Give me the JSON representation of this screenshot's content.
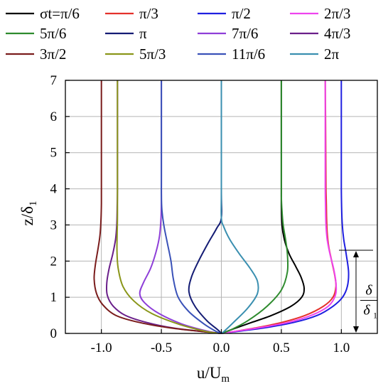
{
  "chart_data": {
    "type": "line",
    "title": "",
    "xlabel": {
      "main": "u/U",
      "sub": "m"
    },
    "ylabel": {
      "main": "z/δ",
      "sub": "1"
    },
    "xlim": [
      -1.3,
      1.3
    ],
    "ylim": [
      0,
      7
    ],
    "xticks": [
      -1.0,
      -0.5,
      0.0,
      0.5,
      1.0
    ],
    "xtick_labels": [
      "-1.0",
      "-0.5",
      "0.0",
      "0.5",
      "1.0"
    ],
    "yticks": [
      0,
      1,
      2,
      3,
      4,
      5,
      6,
      7
    ],
    "ytick_labels": [
      "0",
      "1",
      "2",
      "3",
      "4",
      "5",
      "6",
      "7"
    ],
    "grid": true,
    "legend_position": "top (above plot), 4 columns",
    "annotation": {
      "numerator": "δ",
      "denominator": "δ",
      "denominator_sub": "1",
      "height_y": 2.3
    },
    "series": [
      {
        "name": "σt=π/6",
        "color": "#000000",
        "x": [
          0.0,
          0.04,
          0.12,
          0.25,
          0.42,
          0.58,
          0.67,
          0.69,
          0.665,
          0.62,
          0.565,
          0.525,
          0.505,
          0.5,
          0.5,
          0.5,
          0.5,
          0.5,
          0.5
        ],
        "y": [
          0.0,
          0.05,
          0.15,
          0.3,
          0.5,
          0.75,
          1.0,
          1.25,
          1.55,
          1.85,
          2.2,
          2.6,
          3.0,
          3.5,
          4.0,
          5.0,
          5.5,
          6.0,
          7.0
        ]
      },
      {
        "name": "π/3",
        "color": "#e4312b",
        "x": [
          0.0,
          0.1,
          0.28,
          0.5,
          0.7,
          0.85,
          0.93,
          0.955,
          0.945,
          0.92,
          0.895,
          0.882,
          0.877,
          0.875,
          0.872,
          0.87,
          0.868,
          0.866
        ],
        "y": [
          0.0,
          0.05,
          0.15,
          0.3,
          0.5,
          0.75,
          1.0,
          1.3,
          1.6,
          2.0,
          2.4,
          2.8,
          3.2,
          3.6,
          4.0,
          5.0,
          6.0,
          7.0
        ]
      },
      {
        "name": "π/2",
        "color": "#1f1fe0",
        "x": [
          0.0,
          0.12,
          0.35,
          0.6,
          0.8,
          0.93,
          1.01,
          1.05,
          1.06,
          1.04,
          1.02,
          1.008,
          1.002,
          1.0,
          1.0,
          1.0
        ],
        "y": [
          0.0,
          0.05,
          0.15,
          0.3,
          0.5,
          0.75,
          1.0,
          1.3,
          1.7,
          2.2,
          2.6,
          3.0,
          3.5,
          4.0,
          5.0,
          7.0
        ]
      },
      {
        "name": "2π/3",
        "color": "#ee44ee",
        "x": [
          0.0,
          0.1,
          0.3,
          0.55,
          0.75,
          0.89,
          0.95,
          0.955,
          0.935,
          0.905,
          0.882,
          0.872,
          0.868,
          0.866,
          0.866,
          0.866
        ],
        "y": [
          0.0,
          0.05,
          0.15,
          0.3,
          0.5,
          0.75,
          1.05,
          1.4,
          1.8,
          2.2,
          2.6,
          3.0,
          3.5,
          4.0,
          5.0,
          7.0
        ]
      },
      {
        "name": "5π/6",
        "color": "#2e8b2e",
        "x": [
          0.0,
          0.08,
          0.22,
          0.38,
          0.5,
          0.55,
          0.55,
          0.535,
          0.515,
          0.505,
          0.5,
          0.5,
          0.5,
          0.5
        ],
        "y": [
          0.0,
          0.1,
          0.35,
          0.75,
          1.2,
          1.7,
          2.2,
          2.6,
          3.0,
          3.4,
          3.8,
          4.5,
          5.5,
          7.0
        ]
      },
      {
        "name": "π",
        "color": "#141c74",
        "x": [
          0.0,
          -0.03,
          -0.12,
          -0.22,
          -0.27,
          -0.25,
          -0.19,
          -0.11,
          -0.04,
          0.0,
          0.0,
          0.0
        ],
        "y": [
          0.0,
          0.1,
          0.35,
          0.75,
          1.15,
          1.55,
          2.0,
          2.5,
          2.9,
          3.2,
          4.0,
          7.0
        ]
      },
      {
        "name": "7π/6",
        "color": "#8e3fd8",
        "x": [
          0.0,
          -0.1,
          -0.32,
          -0.52,
          -0.64,
          -0.68,
          -0.65,
          -0.59,
          -0.545,
          -0.515,
          -0.503,
          -0.5,
          -0.5,
          -0.5
        ],
        "y": [
          0.0,
          0.05,
          0.25,
          0.55,
          0.85,
          1.1,
          1.4,
          1.8,
          2.25,
          2.7,
          3.2,
          3.7,
          4.5,
          7.0
        ]
      },
      {
        "name": "4π/3",
        "color": "#6a1f8a",
        "x": [
          0.0,
          -0.15,
          -0.4,
          -0.62,
          -0.8,
          -0.9,
          -0.95,
          -0.955,
          -0.935,
          -0.905,
          -0.882,
          -0.872,
          -0.868,
          -0.866,
          -0.866,
          -0.866
        ],
        "y": [
          0.0,
          0.05,
          0.15,
          0.3,
          0.5,
          0.75,
          1.05,
          1.4,
          1.8,
          2.2,
          2.6,
          3.0,
          3.5,
          4.0,
          5.0,
          7.0
        ]
      },
      {
        "name": "3π/2",
        "color": "#7a1c1c",
        "x": [
          0.0,
          -0.15,
          -0.42,
          -0.68,
          -0.88,
          -0.99,
          -1.04,
          -1.06,
          -1.05,
          -1.03,
          -1.012,
          -1.004,
          -1.0,
          -1.0,
          -1.0
        ],
        "y": [
          0.0,
          0.05,
          0.15,
          0.3,
          0.5,
          0.8,
          1.1,
          1.5,
          1.9,
          2.3,
          2.7,
          3.1,
          3.6,
          5.0,
          7.0
        ]
      },
      {
        "name": "5π/3",
        "color": "#8a961a",
        "x": [
          0.0,
          -0.12,
          -0.35,
          -0.58,
          -0.73,
          -0.82,
          -0.86,
          -0.87,
          -0.868,
          -0.866,
          -0.866,
          -0.866
        ],
        "y": [
          0.0,
          0.05,
          0.25,
          0.55,
          0.9,
          1.3,
          1.8,
          2.3,
          2.8,
          3.3,
          5.0,
          7.0
        ]
      },
      {
        "name": "11π/6",
        "color": "#3a52b8",
        "x": [
          0.0,
          -0.04,
          -0.14,
          -0.27,
          -0.36,
          -0.4,
          -0.42,
          -0.45,
          -0.48,
          -0.495,
          -0.5,
          -0.5,
          -0.5
        ],
        "y": [
          0.0,
          0.05,
          0.25,
          0.6,
          1.0,
          1.5,
          2.0,
          2.5,
          3.0,
          3.4,
          3.8,
          4.5,
          7.0
        ]
      },
      {
        "name": "2π",
        "color": "#3a8fb0",
        "x": [
          0.0,
          0.02,
          0.1,
          0.22,
          0.3,
          0.3,
          0.24,
          0.15,
          0.07,
          0.02,
          0.0,
          0.0,
          0.0
        ],
        "y": [
          0.0,
          0.05,
          0.3,
          0.7,
          1.1,
          1.45,
          1.8,
          2.2,
          2.6,
          2.95,
          3.2,
          4.0,
          7.0
        ]
      }
    ]
  }
}
